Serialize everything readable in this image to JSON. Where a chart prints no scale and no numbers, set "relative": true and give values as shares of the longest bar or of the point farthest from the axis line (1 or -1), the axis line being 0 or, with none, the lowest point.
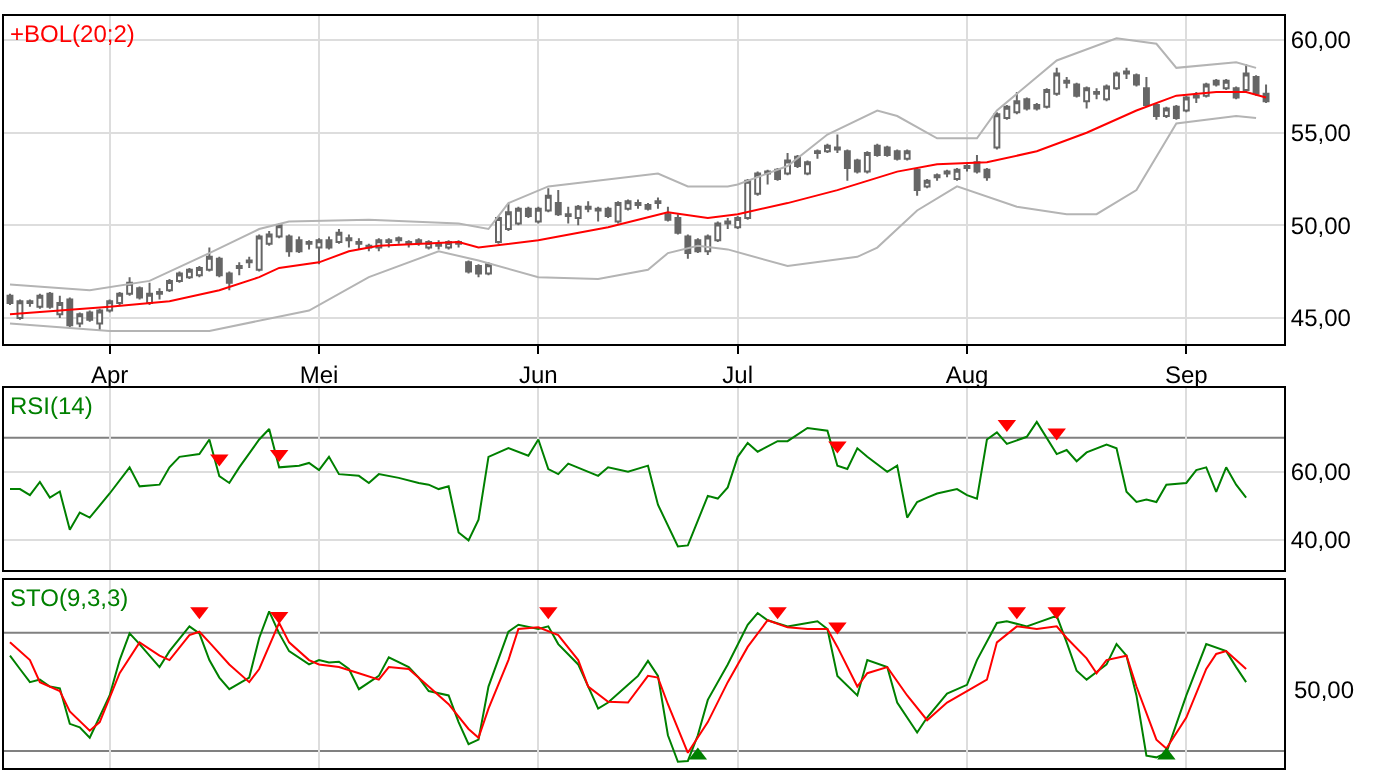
{
  "chart_data": [
    {
      "type": "candlestick",
      "title": "+BOL(20;2)",
      "color": "#666666",
      "grid": true,
      "categories": [
        null,
        null,
        null,
        null,
        null,
        null,
        null,
        null,
        null,
        null,
        "Apr",
        null,
        null,
        null,
        null,
        null,
        null,
        null,
        null,
        null,
        null,
        null,
        null,
        null,
        null,
        null,
        null,
        null,
        null,
        null,
        null,
        "Mei",
        null,
        null,
        null,
        null,
        null,
        null,
        null,
        null,
        null,
        null,
        null,
        null,
        null,
        null,
        null,
        null,
        null,
        null,
        null,
        null,
        null,
        "Jun",
        null,
        null,
        null,
        null,
        null,
        null,
        null,
        null,
        null,
        null,
        null,
        null,
        null,
        null,
        null,
        null,
        null,
        null,
        null,
        "Jul",
        null,
        null,
        null,
        null,
        null,
        null,
        null,
        null,
        null,
        null,
        null,
        null,
        null,
        null,
        null,
        null,
        null,
        null,
        null,
        null,
        null,
        null,
        "Aug",
        null,
        null,
        null,
        null,
        null,
        null,
        null,
        null,
        null,
        null,
        null,
        null,
        null,
        null,
        null,
        null,
        null,
        null,
        null,
        null,
        null,
        "Sep",
        null,
        null,
        null,
        null,
        null,
        null,
        null,
        null
      ],
      "ohlc": [
        [
          46.2,
          46.3,
          45.7,
          45.8
        ],
        [
          45.0,
          46.0,
          44.9,
          45.9
        ],
        [
          45.8,
          46.0,
          45.6,
          45.9
        ],
        [
          45.6,
          46.3,
          45.5,
          46.2
        ],
        [
          46.3,
          46.4,
          45.5,
          45.6
        ],
        [
          45.2,
          46.2,
          45.0,
          45.8
        ],
        [
          46.0,
          46.1,
          44.5,
          44.6
        ],
        [
          44.7,
          45.3,
          44.5,
          45.2
        ],
        [
          45.3,
          45.4,
          44.8,
          44.9
        ],
        [
          44.7,
          45.5,
          44.3,
          45.4
        ],
        [
          45.4,
          46.0,
          45.3,
          45.9
        ],
        [
          45.8,
          46.4,
          45.7,
          46.3
        ],
        [
          46.3,
          47.2,
          46.2,
          46.9
        ],
        [
          46.6,
          46.7,
          46.0,
          46.1
        ],
        [
          45.8,
          46.9,
          45.7,
          46.3
        ],
        [
          46.3,
          46.6,
          46.0,
          46.4
        ],
        [
          46.5,
          47.1,
          46.4,
          47.0
        ],
        [
          47.0,
          47.5,
          46.9,
          47.4
        ],
        [
          47.2,
          47.7,
          47.1,
          47.6
        ],
        [
          47.3,
          47.8,
          47.2,
          47.7
        ],
        [
          47.6,
          48.8,
          47.5,
          48.3
        ],
        [
          48.2,
          48.3,
          47.2,
          47.3
        ],
        [
          47.4,
          47.5,
          46.5,
          46.9
        ],
        [
          47.7,
          48.0,
          47.3,
          47.8
        ],
        [
          48.0,
          48.3,
          47.7,
          48.1
        ],
        [
          47.6,
          49.5,
          47.5,
          49.4
        ],
        [
          49.0,
          49.7,
          48.9,
          49.5
        ],
        [
          49.4,
          50.1,
          49.3,
          50.0
        ],
        [
          49.4,
          49.5,
          48.3,
          48.6
        ],
        [
          49.2,
          49.4,
          48.5,
          48.6
        ],
        [
          49.0,
          49.2,
          48.7,
          49.1
        ],
        [
          48.8,
          49.3,
          47.9,
          49.2
        ],
        [
          49.2,
          49.4,
          48.7,
          48.8
        ],
        [
          49.1,
          49.8,
          49.0,
          49.6
        ],
        [
          49.2,
          49.5,
          48.8,
          49.3
        ],
        [
          49.0,
          49.3,
          48.7,
          49.1
        ],
        [
          48.8,
          49.0,
          48.6,
          48.9
        ],
        [
          48.8,
          49.3,
          48.6,
          49.2
        ],
        [
          49.1,
          49.3,
          48.8,
          49.2
        ],
        [
          49.2,
          49.4,
          49.0,
          49.3
        ],
        [
          49.0,
          49.2,
          48.8,
          49.1
        ],
        [
          49.1,
          49.3,
          48.9,
          49.2
        ],
        [
          48.8,
          49.2,
          48.7,
          49.1
        ],
        [
          49.0,
          49.2,
          48.7,
          48.9
        ],
        [
          48.8,
          49.2,
          48.7,
          49.1
        ],
        [
          49.0,
          49.2,
          48.8,
          49.1
        ],
        [
          48.0,
          48.1,
          47.4,
          47.5
        ],
        [
          47.8,
          47.9,
          47.2,
          47.4
        ],
        [
          47.4,
          48.0,
          47.3,
          47.9
        ],
        [
          49.1,
          50.5,
          49.0,
          50.4
        ],
        [
          49.8,
          51.2,
          49.7,
          50.7
        ],
        [
          50.1,
          51.0,
          50.0,
          50.9
        ],
        [
          50.9,
          51.0,
          50.4,
          50.5
        ],
        [
          50.2,
          51.0,
          50.1,
          50.9
        ],
        [
          50.8,
          52.0,
          50.7,
          51.6
        ],
        [
          51.2,
          51.9,
          50.5,
          50.6
        ],
        [
          50.5,
          51.0,
          50.1,
          50.6
        ],
        [
          50.4,
          51.1,
          50.0,
          51.0
        ],
        [
          50.9,
          51.3,
          50.7,
          51.0
        ],
        [
          50.8,
          51.0,
          50.2,
          50.9
        ],
        [
          50.9,
          51.0,
          50.4,
          50.5
        ],
        [
          50.2,
          51.3,
          50.1,
          51.2
        ],
        [
          50.9,
          51.4,
          50.8,
          51.3
        ],
        [
          51.1,
          51.4,
          50.9,
          51.2
        ],
        [
          51.1,
          51.2,
          50.8,
          50.9
        ],
        [
          51.2,
          51.5,
          50.9,
          51.3
        ],
        [
          50.6,
          51.0,
          50.2,
          50.3
        ],
        [
          50.4,
          50.6,
          49.5,
          49.6
        ],
        [
          49.4,
          49.5,
          48.2,
          48.5
        ],
        [
          49.2,
          49.3,
          48.5,
          48.6
        ],
        [
          48.6,
          49.5,
          48.4,
          49.4
        ],
        [
          49.2,
          50.2,
          49.1,
          50.1
        ],
        [
          50.1,
          50.4,
          49.8,
          50.2
        ],
        [
          49.9,
          50.5,
          49.8,
          50.4
        ],
        [
          50.4,
          52.5,
          50.3,
          52.4
        ],
        [
          51.7,
          52.9,
          51.6,
          52.8
        ],
        [
          52.8,
          53.0,
          52.2,
          52.9
        ],
        [
          53.0,
          53.1,
          52.4,
          52.5
        ],
        [
          52.8,
          53.9,
          52.7,
          53.5
        ],
        [
          53.7,
          53.8,
          53.1,
          53.2
        ],
        [
          52.8,
          53.5,
          52.7,
          53.4
        ],
        [
          53.9,
          54.1,
          53.6,
          54.0
        ],
        [
          54.0,
          54.4,
          53.9,
          54.3
        ],
        [
          54.1,
          54.9,
          53.9,
          54.2
        ],
        [
          54.0,
          54.1,
          52.4,
          53.1
        ],
        [
          53.5,
          53.6,
          52.8,
          52.9
        ],
        [
          52.9,
          54.0,
          52.8,
          53.9
        ],
        [
          54.3,
          54.4,
          53.7,
          53.8
        ],
        [
          54.2,
          54.3,
          53.7,
          53.8
        ],
        [
          54.0,
          54.1,
          53.5,
          53.6
        ],
        [
          53.6,
          54.1,
          53.5,
          54.0
        ],
        [
          53.0,
          53.1,
          51.6,
          51.9
        ],
        [
          52.1,
          52.5,
          52.0,
          52.4
        ],
        [
          52.6,
          52.8,
          52.4,
          52.7
        ],
        [
          52.8,
          53.0,
          52.6,
          52.9
        ],
        [
          52.5,
          53.1,
          52.4,
          53.0
        ],
        [
          53.1,
          53.3,
          52.9,
          53.2
        ],
        [
          53.4,
          53.8,
          52.8,
          52.9
        ],
        [
          53.0,
          53.1,
          52.4,
          52.6
        ],
        [
          54.2,
          56.1,
          54.1,
          56.0
        ],
        [
          55.8,
          56.5,
          55.7,
          56.4
        ],
        [
          56.1,
          57.2,
          56.0,
          56.7
        ],
        [
          56.8,
          56.9,
          56.2,
          56.3
        ],
        [
          56.3,
          56.6,
          56.2,
          56.5
        ],
        [
          56.4,
          57.4,
          56.3,
          57.3
        ],
        [
          57.1,
          58.5,
          57.0,
          58.2
        ],
        [
          57.7,
          58.0,
          57.4,
          57.8
        ],
        [
          57.6,
          57.7,
          56.9,
          57.0
        ],
        [
          56.7,
          57.5,
          56.3,
          57.4
        ],
        [
          57.1,
          57.4,
          56.8,
          57.2
        ],
        [
          56.8,
          57.6,
          56.7,
          57.5
        ],
        [
          57.4,
          58.3,
          57.3,
          58.2
        ],
        [
          58.2,
          58.5,
          57.9,
          58.3
        ],
        [
          58.1,
          58.2,
          57.5,
          57.6
        ],
        [
          57.4,
          58.0,
          56.4,
          56.5
        ],
        [
          56.5,
          56.6,
          55.7,
          55.9
        ],
        [
          55.9,
          56.4,
          55.8,
          56.3
        ],
        [
          56.4,
          56.5,
          55.7,
          55.8
        ],
        [
          56.2,
          57.0,
          56.1,
          56.9
        ],
        [
          56.9,
          57.2,
          56.6,
          57.0
        ],
        [
          57.0,
          57.7,
          56.9,
          57.6
        ],
        [
          57.6,
          57.9,
          57.5,
          57.8
        ],
        [
          57.4,
          57.9,
          57.3,
          57.8
        ],
        [
          57.4,
          57.5,
          56.8,
          56.9
        ],
        [
          57.3,
          58.7,
          57.2,
          58.2
        ],
        [
          58.0,
          58.1,
          57.0,
          57.1
        ],
        [
          57.1,
          57.6,
          56.6,
          56.7
        ]
      ],
      "series": [
        {
          "type": "line",
          "color": "#ff0000",
          "values": [
            45.2,
            null,
            null,
            null,
            null,
            null,
            null,
            null,
            null,
            null,
            45.6,
            null,
            null,
            null,
            null,
            null,
            45.9,
            null,
            null,
            null,
            null,
            46.5,
            null,
            null,
            null,
            47.2,
            null,
            47.7,
            null,
            null,
            null,
            48.0,
            null,
            null,
            48.6,
            null,
            null,
            48.9,
            null,
            null,
            null,
            null,
            null,
            null,
            null,
            49.1,
            null,
            48.8,
            null,
            null,
            null,
            null,
            null,
            49.2,
            null,
            null,
            null,
            null,
            null,
            null,
            49.9,
            null,
            null,
            null,
            null,
            null,
            50.7,
            null,
            null,
            null,
            50.4,
            null,
            null,
            50.6,
            null,
            null,
            null,
            null,
            51.2,
            null,
            null,
            null,
            null,
            51.9,
            null,
            null,
            52.4,
            null,
            null,
            52.9,
            null,
            null,
            null,
            53.3,
            null,
            null,
            null,
            null,
            53.4,
            null,
            null,
            null,
            null,
            54.0,
            null,
            null,
            null,
            null,
            55.0,
            null,
            null,
            null,
            null,
            56.2,
            null,
            null,
            null,
            57.0,
            null,
            null,
            null,
            57.2,
            null,
            null,
            57.2,
            null,
            56.9
          ]
        },
        {
          "type": "line",
          "color": "#b4b4b4",
          "values": [
            46.8,
            null,
            null,
            null,
            null,
            null,
            null,
            null,
            46.5,
            null,
            null,
            null,
            null,
            null,
            47.0,
            null,
            null,
            null,
            null,
            null,
            48.5,
            null,
            null,
            null,
            null,
            49.8,
            null,
            null,
            50.2,
            null,
            null,
            null,
            null,
            null,
            null,
            null,
            50.3,
            null,
            null,
            null,
            null,
            null,
            null,
            null,
            null,
            50.1,
            null,
            null,
            49.8,
            null,
            51.2,
            null,
            null,
            null,
            52.1,
            null,
            null,
            null,
            null,
            null,
            null,
            null,
            null,
            null,
            null,
            52.8,
            null,
            null,
            52.1,
            null,
            null,
            null,
            52.1,
            52.2,
            null,
            null,
            null,
            null,
            53.2,
            null,
            null,
            null,
            54.9,
            null,
            null,
            null,
            null,
            56.2,
            null,
            55.9,
            null,
            null,
            null,
            54.7,
            null,
            null,
            null,
            54.7,
            null,
            56.2,
            null,
            null,
            null,
            null,
            null,
            58.9,
            null,
            null,
            null,
            null,
            null,
            60.1,
            null,
            null,
            null,
            59.8,
            null,
            58.5,
            null,
            null,
            null,
            null,
            null,
            58.8,
            null,
            58.5,
            null
          ]
        },
        {
          "type": "line",
          "color": "#b4b4b4",
          "values": [
            44.7,
            null,
            null,
            null,
            null,
            null,
            null,
            null,
            null,
            null,
            44.3,
            null,
            null,
            null,
            null,
            null,
            null,
            null,
            null,
            null,
            44.3,
            null,
            null,
            null,
            null,
            null,
            null,
            null,
            null,
            null,
            45.4,
            null,
            null,
            null,
            null,
            null,
            47.2,
            null,
            null,
            null,
            null,
            null,
            null,
            48.6,
            null,
            null,
            null,
            48.1,
            null,
            null,
            null,
            null,
            null,
            47.2,
            null,
            null,
            null,
            null,
            null,
            47.1,
            null,
            null,
            null,
            null,
            47.6,
            null,
            48.5,
            null,
            null,
            48.9,
            null,
            null,
            48.7,
            null,
            null,
            null,
            null,
            null,
            47.8,
            null,
            null,
            null,
            null,
            null,
            null,
            48.3,
            null,
            48.8,
            null,
            null,
            null,
            50.8,
            null,
            null,
            null,
            52.1,
            null,
            null,
            null,
            null,
            null,
            51.0,
            null,
            null,
            null,
            null,
            50.6,
            null,
            null,
            50.6,
            null,
            null,
            null,
            51.9,
            null,
            null,
            null,
            55.5,
            null,
            null,
            null,
            null,
            null,
            55.9,
            null,
            55.8,
            null
          ]
        }
      ],
      "ylim": [
        43.6,
        61.3
      ],
      "yticks": [
        {
          "value": 45,
          "label": "45,00"
        },
        {
          "value": 50,
          "label": "50,00"
        },
        {
          "value": 55,
          "label": "55,00"
        },
        {
          "value": 60,
          "label": "60,00"
        }
      ]
    },
    {
      "type": "line",
      "title": "RSI(14)",
      "grid": true,
      "tick_labels": "y",
      "categories": [
        null,
        null,
        null,
        null,
        null,
        null,
        null,
        null,
        null,
        null,
        null,
        null,
        null,
        null,
        null,
        null,
        null,
        null,
        null,
        null,
        null,
        null,
        null,
        null,
        null,
        null,
        null,
        null,
        null,
        null,
        null,
        null,
        null,
        null,
        null,
        null,
        null,
        null,
        null,
        null,
        null,
        null,
        null,
        null,
        null,
        null,
        null,
        null,
        null,
        null,
        null,
        null,
        null,
        null,
        null,
        null,
        null,
        null,
        null,
        null,
        null,
        null,
        null,
        null,
        null,
        null,
        null,
        null,
        null,
        null,
        null,
        null,
        null,
        null,
        null,
        null,
        null,
        null,
        null,
        null,
        null,
        null,
        null,
        null,
        null,
        null,
        null,
        null,
        null,
        null,
        null,
        null,
        null,
        null,
        null,
        null,
        null,
        null,
        null,
        null,
        null,
        null,
        null,
        null,
        null,
        null,
        null,
        null,
        null,
        null,
        null,
        null,
        null,
        null,
        null,
        null,
        null,
        null,
        null,
        null,
        null,
        null,
        null,
        null,
        null,
        null,
        null
      ],
      "series": [
        {
          "type": "line",
          "color": "#008000",
          "values": [
            54.9,
            54.9,
            53.1,
            57.0,
            52.4,
            54.2,
            42.9,
            48.0,
            46.5,
            null,
            53.6,
            null,
            61.3,
            55.7,
            null,
            56.2,
            61.3,
            64.4,
            null,
            65.2,
            69.5,
            58.7,
            56.7,
            61.3,
            null,
            69.5,
            72.6,
            61.3,
            null,
            61.8,
            62.6,
            60.5,
            64.4,
            59.3,
            null,
            58.8,
            56.7,
            59.3,
            null,
            58.2,
            null,
            56.7,
            56.2,
            54.9,
            55.7,
            42.1,
            39.8,
            45.9,
            64.4,
            null,
            67.0,
            null,
            64.7,
            69.5,
            60.8,
            59.3,
            62.4,
            null,
            null,
            58.8,
            61.3,
            null,
            60.0,
            null,
            61.8,
            50.3,
            null,
            38.0,
            38.3,
            null,
            52.9,
            52.1,
            55.4,
            64.4,
            68.5,
            65.9,
            null,
            69.0,
            69.0,
            null,
            72.9,
            null,
            72.1,
            61.8,
            60.8,
            66.9,
            64.4,
            null,
            60.0,
            61.8,
            46.5,
            51.1,
            52.4,
            53.6,
            null,
            54.9,
            53.1,
            52.1,
            69.5,
            71.6,
            68.2,
            null,
            70.3,
            74.7,
            null,
            65.2,
            66.4,
            63.1,
            65.7,
            null,
            68.0,
            66.9,
            54.1,
            51.1,
            51.8,
            51.1,
            56.2,
            null,
            56.7,
            60.5,
            61.3,
            54.1,
            61.3,
            56.2,
            52.4,
            null,
            null
          ]
        },
        {
          "type": "scatter",
          "marker": "triangle-down",
          "color": "#ff0000",
          "values": [
            null,
            null,
            null,
            null,
            null,
            null,
            null,
            null,
            null,
            null,
            null,
            null,
            null,
            null,
            null,
            null,
            null,
            null,
            null,
            null,
            null,
            63.9,
            null,
            null,
            null,
            null,
            null,
            65.2,
            null,
            null,
            null,
            null,
            null,
            null,
            null,
            null,
            null,
            null,
            null,
            null,
            null,
            null,
            null,
            null,
            null,
            null,
            null,
            null,
            null,
            null,
            null,
            null,
            null,
            null,
            null,
            null,
            null,
            null,
            null,
            null,
            null,
            null,
            null,
            null,
            null,
            null,
            null,
            null,
            null,
            null,
            null,
            null,
            null,
            null,
            null,
            null,
            null,
            null,
            null,
            null,
            null,
            null,
            null,
            67.7,
            null,
            null,
            null,
            null,
            null,
            null,
            null,
            null,
            null,
            null,
            null,
            null,
            null,
            null,
            null,
            null,
            74.1,
            null,
            null,
            null,
            null,
            71.6,
            null,
            null,
            null,
            null,
            null,
            null,
            null,
            null,
            null,
            null,
            null,
            null,
            null,
            null,
            null,
            null,
            null,
            null,
            null,
            null,
            null
          ]
        }
      ],
      "ref_lines": [
        {
          "axis": "y",
          "value": 70,
          "color": "#808080"
        }
      ],
      "ylim": [
        31,
        84.6
      ],
      "yticks": [
        {
          "value": 40,
          "label": "40,00"
        },
        {
          "value": 60,
          "label": "60,00"
        }
      ]
    },
    {
      "type": "line",
      "title": "STO(9,3,3)",
      "grid": true,
      "tick_labels": false,
      "relative": true,
      "annotations": [
        "50,00"
      ],
      "categories": [
        null,
        null,
        null,
        null,
        null,
        null,
        null,
        null,
        null,
        null,
        null,
        null,
        null,
        null,
        null,
        null,
        null,
        null,
        null,
        null,
        null,
        null,
        null,
        null,
        null,
        null,
        null,
        null,
        null,
        null,
        null,
        null,
        null,
        null,
        null,
        null,
        null,
        null,
        null,
        null,
        null,
        null,
        null,
        null,
        null,
        null,
        null,
        null,
        null,
        null,
        null,
        null,
        null,
        null,
        null,
        null,
        null,
        null,
        null,
        null,
        null,
        null,
        null,
        null,
        null,
        null,
        null,
        null,
        null,
        null,
        null,
        null,
        null,
        null,
        null,
        null,
        null,
        null,
        null,
        null,
        null,
        null,
        null,
        null,
        null,
        null,
        null,
        null,
        null,
        null,
        null,
        null,
        null,
        null,
        null,
        null,
        null,
        null,
        null,
        null,
        null,
        null,
        null,
        null,
        null,
        null,
        null,
        null,
        null,
        null,
        null,
        null,
        null,
        null,
        null,
        null,
        null,
        null,
        null,
        null,
        null,
        null,
        null,
        null,
        null,
        null,
        null
      ],
      "series": [
        {
          "type": "line",
          "color": "#008000",
          "values": [
            0.717,
            0.632,
            0.548,
            0.564,
            0.52,
            0.509,
            0.282,
            0.259,
            0.193,
            null,
            0.463,
            0.689,
            0.859,
            0.791,
            0.717,
            0.644,
            0.746,
            null,
            0.904,
            0.859,
            0.689,
            0.577,
            0.503,
            null,
            0.577,
            0.83,
            1.0,
            0.859,
            0.746,
            null,
            0.661,
            0.689,
            0.673,
            0.678,
            0.632,
            0.503,
            null,
            0.588,
            0.707,
            null,
            0.644,
            0.577,
            0.491,
            null,
            0.463,
            0.293,
            0.152,
            0.181,
            0.52,
            null,
            0.87,
            0.914,
            null,
            0.887,
            0.904,
            0.791,
            null,
            0.661,
            null,
            0.379,
            0.418,
            null,
            0.531,
            0.588,
            0.684,
            0.588,
            0.209,
            0.04,
            0.045,
            0.209,
            0.435,
            null,
            0.661,
            null,
            0.914,
            0.989,
            0.943,
            null,
            0.904,
            0.914,
            null,
            0.937,
            0.887,
            0.588,
            null,
            0.463,
            0.689,
            null,
            0.644,
            0.418,
            null,
            0.227,
            0.322,
            null,
            0.475,
            null,
            0.531,
            0.689,
            null,
            0.926,
            0.937,
            null,
            0.904,
            0.926,
            null,
            0.971,
            0.802,
            0.621,
            0.564,
            null,
            0.661,
            0.791,
            0.717,
            0.463,
            0.079,
            0.068,
            0.097,
            null,
            0.463,
            null,
            0.791,
            null,
            0.746,
            0.644,
            0.548,
            null,
            null
          ]
        },
        {
          "type": "line",
          "color": "#ff0000",
          "values": [
            0.802,
            null,
            0.689,
            0.548,
            null,
            0.491,
            0.361,
            null,
            0.238,
            0.293,
            null,
            0.605,
            null,
            0.802,
            null,
            0.717,
            0.689,
            null,
            0.848,
            0.87,
            0.802,
            null,
            0.661,
            null,
            0.548,
            0.632,
            null,
            0.926,
            0.802,
            null,
            0.689,
            0.661,
            null,
            0.644,
            null,
            0.605,
            null,
            0.564,
            0.644,
            null,
            0.632,
            null,
            0.52,
            null,
            0.407,
            null,
            0.249,
            0.193,
            0.379,
            null,
            0.689,
            0.887,
            null,
            0.898,
            null,
            0.848,
            null,
            0.689,
            0.52,
            null,
            0.423,
            null,
            0.418,
            null,
            0.588,
            0.577,
            0.407,
            null,
            0.097,
            null,
            0.293,
            null,
            0.548,
            null,
            0.773,
            null,
            0.943,
            null,
            0.898,
            null,
            0.887,
            null,
            0.887,
            0.773,
            null,
            0.52,
            0.605,
            null,
            0.644,
            null,
            0.463,
            null,
            0.305,
            null,
            0.418,
            null,
            0.491,
            null,
            0.564,
            0.802,
            null,
            0.904,
            null,
            0.887,
            null,
            0.904,
            0.83,
            null,
            0.7,
            0.605,
            0.689,
            null,
            0.717,
            0.52,
            null,
            0.181,
            0.125,
            null,
            0.322,
            null,
            0.632,
            0.728,
            0.746,
            0.689,
            0.632,
            null,
            null
          ]
        },
        {
          "type": "scatter",
          "marker": "triangle-down",
          "color": "#ff0000",
          "values": [
            null,
            null,
            null,
            null,
            null,
            null,
            null,
            null,
            null,
            null,
            null,
            null,
            null,
            null,
            null,
            null,
            null,
            null,
            null,
            1.0,
            null,
            null,
            null,
            null,
            null,
            null,
            null,
            0.971,
            null,
            null,
            null,
            null,
            null,
            null,
            null,
            null,
            null,
            null,
            null,
            null,
            null,
            null,
            null,
            null,
            null,
            null,
            null,
            null,
            null,
            null,
            null,
            null,
            null,
            null,
            1.0,
            null,
            null,
            null,
            null,
            null,
            null,
            null,
            null,
            null,
            null,
            null,
            null,
            null,
            null,
            null,
            null,
            null,
            null,
            null,
            null,
            null,
            null,
            1.0,
            null,
            null,
            null,
            null,
            null,
            0.903,
            null,
            null,
            null,
            null,
            null,
            null,
            null,
            null,
            null,
            null,
            null,
            null,
            null,
            null,
            null,
            null,
            null,
            1.0,
            null,
            null,
            null,
            1.0,
            null,
            null,
            null,
            null,
            null,
            null,
            null,
            null,
            null,
            null,
            null,
            null,
            null,
            null,
            null,
            null,
            null,
            null,
            null,
            null,
            null
          ]
        },
        {
          "type": "scatter",
          "marker": "triangle",
          "color": "#008000",
          "values": [
            null,
            null,
            null,
            null,
            null,
            null,
            null,
            null,
            null,
            null,
            null,
            null,
            null,
            null,
            null,
            null,
            null,
            null,
            null,
            null,
            null,
            null,
            null,
            null,
            null,
            null,
            null,
            null,
            null,
            null,
            null,
            null,
            null,
            null,
            null,
            null,
            null,
            null,
            null,
            null,
            null,
            null,
            null,
            null,
            null,
            null,
            null,
            null,
            null,
            null,
            null,
            null,
            null,
            null,
            null,
            null,
            null,
            null,
            null,
            null,
            null,
            null,
            null,
            null,
            null,
            null,
            null,
            null,
            null,
            0.079,
            null,
            null,
            null,
            null,
            null,
            null,
            null,
            null,
            null,
            null,
            null,
            null,
            null,
            null,
            null,
            null,
            null,
            null,
            null,
            null,
            null,
            null,
            null,
            null,
            null,
            null,
            null,
            null,
            null,
            null,
            null,
            null,
            null,
            null,
            null,
            null,
            null,
            null,
            null,
            null,
            null,
            null,
            null,
            null,
            null,
            null,
            0.079,
            null,
            null,
            null,
            null,
            null,
            null,
            null,
            null,
            null,
            null
          ]
        }
      ],
      "ref_lines": [
        {
          "axis": "y",
          "value": 0.864,
          "color": "#808080"
        },
        {
          "axis": "y",
          "value": 0.108,
          "color": "#808080"
        }
      ]
    }
  ]
}
